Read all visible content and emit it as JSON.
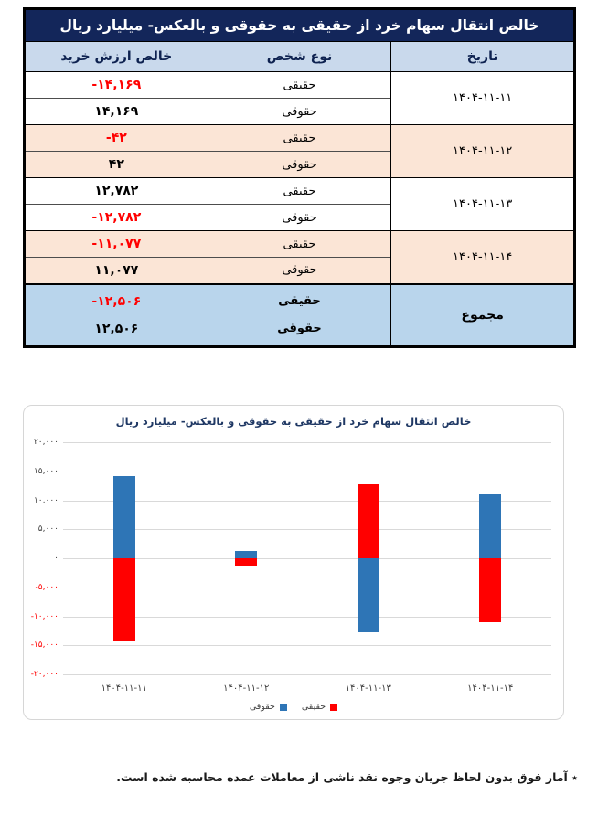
{
  "table": {
    "title": "خالص انتقال سهام خرد از حقیقی به حقوقی و بالعکس- میلیارد ریال",
    "columns": {
      "date": "تاریخ",
      "person": "نوع شخص",
      "value": "خالص ارزش خرید"
    },
    "groups": [
      {
        "date": "۱۴۰۴-۱۱-۱۱",
        "rows": [
          {
            "person": "حقیقی",
            "value": "-۱۴,۱۶۹"
          },
          {
            "person": "حقوقی",
            "value": "۱۴,۱۶۹"
          }
        ]
      },
      {
        "date": "۱۴۰۴-۱۱-۱۲",
        "rows": [
          {
            "person": "حقیقی",
            "value": "-۴۲"
          },
          {
            "person": "حقوقی",
            "value": "۴۲"
          }
        ]
      },
      {
        "date": "۱۴۰۴-۱۱-۱۳",
        "rows": [
          {
            "person": "حقیقی",
            "value": "۱۲,۷۸۲"
          },
          {
            "person": "حقوقی",
            "value": "-۱۲,۷۸۲"
          }
        ]
      },
      {
        "date": "۱۴۰۴-۱۱-۱۴",
        "rows": [
          {
            "person": "حقیقی",
            "value": "-۱۱,۰۷۷"
          },
          {
            "person": "حقوقی",
            "value": "۱۱,۰۷۷"
          }
        ]
      }
    ],
    "total": {
      "label": "مجموع",
      "rows": [
        {
          "person": "حقیقی",
          "value": "-۱۲,۵۰۶"
        },
        {
          "person": "حقوقی",
          "value": "۱۲,۵۰۶"
        }
      ]
    }
  },
  "chart_data": {
    "type": "bar",
    "title": "خالص انتقال سهام خرد از حقیقی به حقوقی و بالعکس- میلیارد ریال",
    "categories": [
      "۱۴۰۴-۱۱-۱۱",
      "۱۴۰۴-۱۱-۱۲",
      "۱۴۰۴-۱۱-۱۳",
      "۱۴۰۴-۱۱-۱۴"
    ],
    "series": [
      {
        "name": "حقیقی",
        "color": "#FF0000",
        "values": [
          -14169,
          -42,
          12782,
          -11077
        ]
      },
      {
        "name": "حقوقی",
        "color": "#2E75B6",
        "values": [
          14169,
          42,
          -12782,
          11077
        ]
      }
    ],
    "ylim": [
      -20000,
      20000
    ],
    "ytick_step": 5000,
    "ytick_labels": [
      "۲۰,۰۰۰",
      "۱۵,۰۰۰",
      "۱۰,۰۰۰",
      "۵,۰۰۰",
      "۰",
      "-۵,۰۰۰",
      "-۱۰,۰۰۰",
      "-۱۵,۰۰۰",
      "-۲۰,۰۰۰"
    ],
    "grid": true,
    "legend_position": "bottom",
    "negative_tick_color": "#FF0000",
    "positive_tick_color": "#404040"
  },
  "footnote": "٭ آمار فوق بدون لحاظ جریان وجوه نقد ناشی از معاملات عمده محاسبه شده است."
}
